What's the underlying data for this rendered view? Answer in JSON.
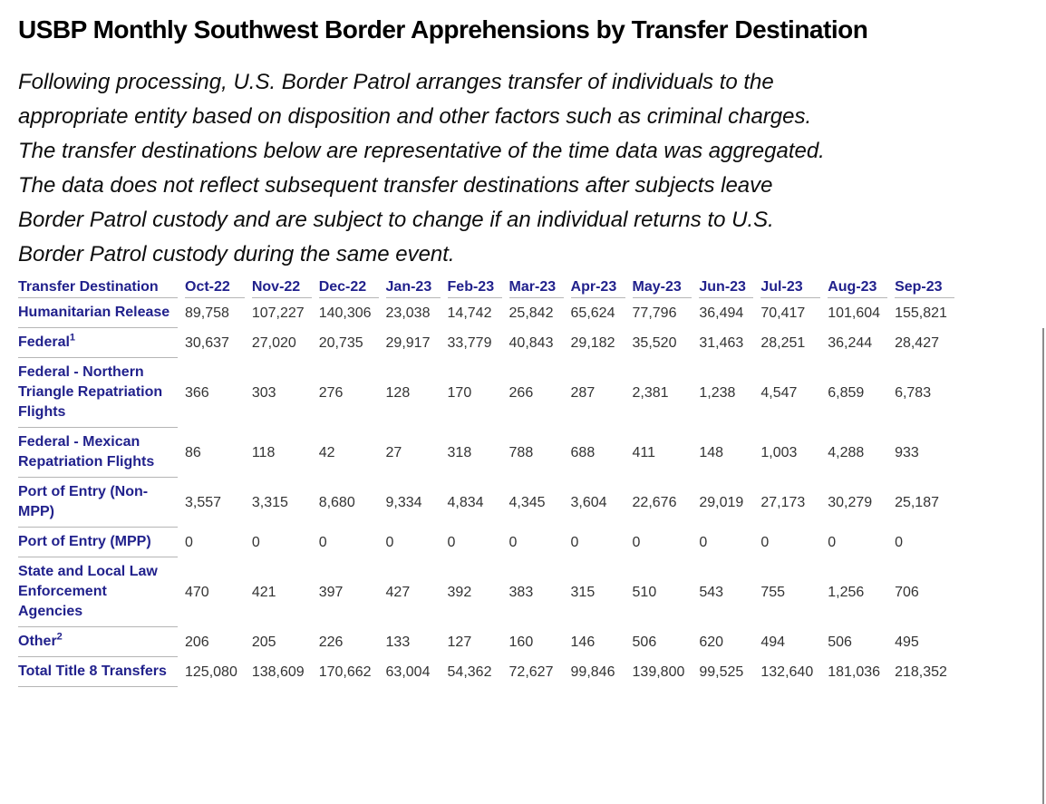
{
  "title": "USBP Monthly Southwest Border Apprehensions by Transfer Destination",
  "intro": {
    "lines": [
      "Following processing, U.S. Border Patrol arranges transfer of individuals to the",
      "appropriate entity based on disposition and other factors such as criminal charges.",
      "The transfer destinations below are representative of the time data was aggregated.",
      "The data does not reflect subsequent transfer destinations after subjects leave",
      "Border Patrol custody and are subject to change if an individual returns to U.S.",
      "Border Patrol custody during the same event."
    ]
  },
  "table": {
    "corner_label": "Transfer Destination",
    "months": [
      "Oct-22",
      "Nov-22",
      "Dec-22",
      "Jan-23",
      "Feb-23",
      "Mar-23",
      "Apr-23",
      "May-23",
      "Jun-23",
      "Jul-23",
      "Aug-23",
      "Sep-23"
    ],
    "rows": [
      {
        "label": "Humanitarian Release",
        "sup": "",
        "values": [
          "89,758",
          "107,227",
          "140,306",
          "23,038",
          "14,742",
          "25,842",
          "65,624",
          "77,796",
          "36,494",
          "70,417",
          "101,604",
          "155,821"
        ]
      },
      {
        "label": "Federal",
        "sup": "1",
        "values": [
          "30,637",
          "27,020",
          "20,735",
          "29,917",
          "33,779",
          "40,843",
          "29,182",
          "35,520",
          "31,463",
          "28,251",
          "36,244",
          "28,427"
        ]
      },
      {
        "label": "Federal - Northern Triangle Repatriation Flights",
        "sup": "",
        "values": [
          "366",
          "303",
          "276",
          "128",
          "170",
          "266",
          "287",
          "2,381",
          "1,238",
          "4,547",
          "6,859",
          "6,783"
        ]
      },
      {
        "label": "Federal - Mexican Repatriation Flights",
        "sup": "",
        "values": [
          "86",
          "118",
          "42",
          "27",
          "318",
          "788",
          "688",
          "411",
          "148",
          "1,003",
          "4,288",
          "933"
        ]
      },
      {
        "label": "Port of Entry (Non-MPP)",
        "sup": "",
        "values": [
          "3,557",
          "3,315",
          "8,680",
          "9,334",
          "4,834",
          "4,345",
          "3,604",
          "22,676",
          "29,019",
          "27,173",
          "30,279",
          "25,187"
        ]
      },
      {
        "label": "Port of Entry (MPP)",
        "sup": "",
        "values": [
          "0",
          "0",
          "0",
          "0",
          "0",
          "0",
          "0",
          "0",
          "0",
          "0",
          "0",
          "0"
        ]
      },
      {
        "label": "State and Local Law Enforcement Agencies",
        "sup": "",
        "values": [
          "470",
          "421",
          "397",
          "427",
          "392",
          "383",
          "315",
          "510",
          "543",
          "755",
          "1,256",
          "706"
        ]
      },
      {
        "label": "Other",
        "sup": "2",
        "values": [
          "206",
          "205",
          "226",
          "133",
          "127",
          "160",
          "146",
          "506",
          "620",
          "494",
          "506",
          "495"
        ]
      },
      {
        "label": "Total Title 8 Transfers",
        "sup": "",
        "values": [
          "125,080",
          "138,609",
          "170,662",
          "63,004",
          "54,362",
          "72,627",
          "99,846",
          "139,800",
          "99,525",
          "132,640",
          "181,036",
          "218,352"
        ]
      }
    ]
  },
  "colors": {
    "heading_text": "#000000",
    "table_label_navy": "#21218C",
    "table_value_gray": "#333333",
    "rule_gray": "#b5b5b5"
  }
}
